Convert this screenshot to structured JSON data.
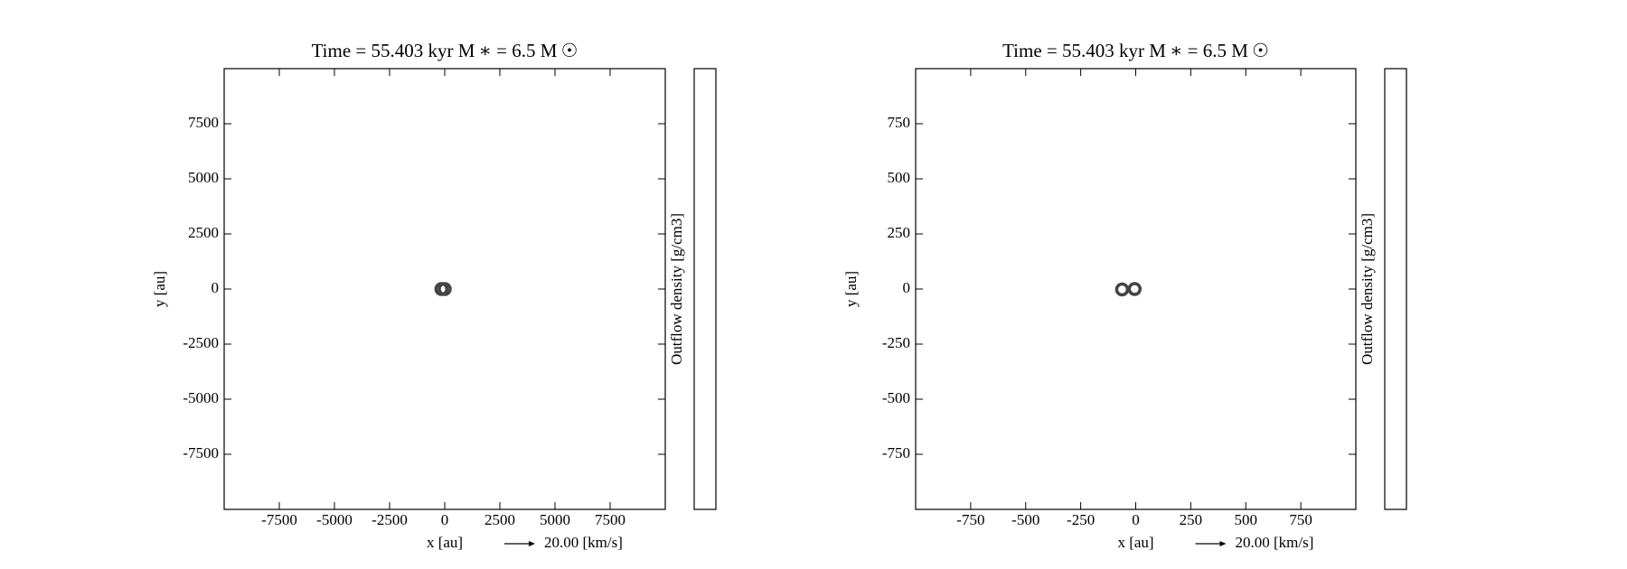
{
  "chart_data": [
    {
      "type": "scatter",
      "title": "Time = 55.403 kyr    M ∗ = 6.5 M ☉",
      "xlabel": "x [au]",
      "ylabel": "y [au]",
      "xlim": [
        -10000,
        10000
      ],
      "ylim": [
        -10000,
        10000
      ],
      "xticks": [
        -7500,
        -5000,
        -2500,
        0,
        2500,
        5000,
        7500
      ],
      "yticks": [
        -7500,
        -5000,
        -2500,
        0,
        2500,
        5000,
        7500
      ],
      "series": [
        {
          "color": "#444444",
          "x": [
            -150,
            0
          ],
          "y": [
            0,
            0
          ]
        }
      ],
      "colorbar_label": "Outflow density [g/cm3]",
      "vector_key_label": "20.00 [km/s]"
    },
    {
      "type": "scatter",
      "title": "Time = 55.403 kyr    M ∗ = 6.5 M ☉",
      "xlabel": "x [au]",
      "ylabel": "y [au]",
      "xlim": [
        -1000,
        1000
      ],
      "ylim": [
        -1000,
        1000
      ],
      "xticks": [
        -750,
        -500,
        -250,
        0,
        250,
        500,
        750
      ],
      "yticks": [
        -750,
        -500,
        -250,
        0,
        250,
        500,
        750
      ],
      "series": [
        {
          "color": "#444444",
          "x": [
            -62,
            -5
          ],
          "y": [
            -2,
            0
          ]
        }
      ],
      "colorbar_label": "Outflow density [g/cm3]",
      "vector_key_label": "20.00 [km/s]"
    }
  ]
}
